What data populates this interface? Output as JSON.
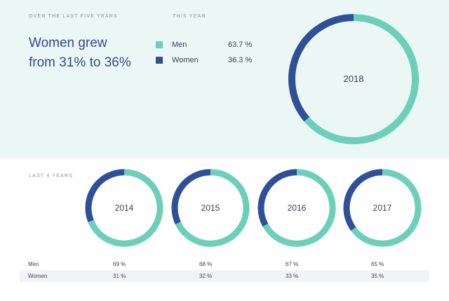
{
  "header": {
    "left_caption": "OVER THE LAST FIVE YEARS",
    "mid_caption": "THIS YEAR",
    "headline_line1": "Women grew",
    "headline_line2": "from 31% to 36%"
  },
  "legend": [
    {
      "name": "Men",
      "value": "63.7 %",
      "color": "#6dcfba"
    },
    {
      "name": "Women",
      "value": "36.3 %",
      "color": "#2f4f96"
    }
  ],
  "section_label": "LAST 4 YEARS",
  "table": {
    "rows": [
      {
        "label": "Men",
        "values": [
          "69 %",
          "68 %",
          "67 %",
          "65 %"
        ]
      },
      {
        "label": "Women",
        "values": [
          "31 %",
          "32 %",
          "33 %",
          "35 %"
        ]
      }
    ]
  },
  "chart_data": [
    {
      "type": "pie",
      "title": "2018",
      "donut": true,
      "categories": [
        "Men",
        "Women"
      ],
      "values": [
        63.7,
        36.3
      ],
      "colors": [
        "#6dcfba",
        "#2f4f96"
      ]
    },
    {
      "type": "pie",
      "title": "2014",
      "donut": true,
      "categories": [
        "Men",
        "Women"
      ],
      "values": [
        69,
        31
      ],
      "colors": [
        "#6dcfba",
        "#2f4f96"
      ]
    },
    {
      "type": "pie",
      "title": "2015",
      "donut": true,
      "categories": [
        "Men",
        "Women"
      ],
      "values": [
        68,
        32
      ],
      "colors": [
        "#6dcfba",
        "#2f4f96"
      ]
    },
    {
      "type": "pie",
      "title": "2016",
      "donut": true,
      "categories": [
        "Men",
        "Women"
      ],
      "values": [
        67,
        33
      ],
      "colors": [
        "#6dcfba",
        "#2f4f96"
      ]
    },
    {
      "type": "pie",
      "title": "2017",
      "donut": true,
      "categories": [
        "Men",
        "Women"
      ],
      "values": [
        65,
        35
      ],
      "colors": [
        "#6dcfba",
        "#2f4f96"
      ]
    }
  ]
}
